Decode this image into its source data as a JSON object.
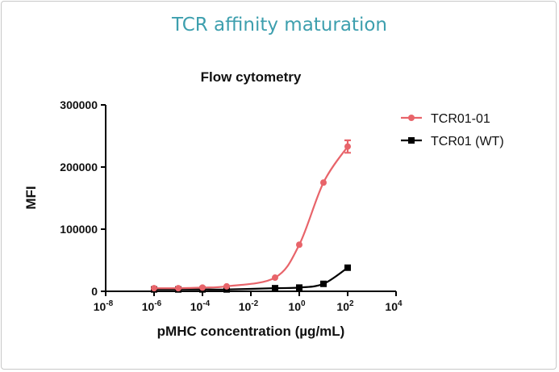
{
  "page_title": "TCR affinity maturation",
  "chart_data": {
    "type": "line",
    "title": "Flow cytometry",
    "xlabel": "pMHC concentration (µg/mL)",
    "ylabel": "MFI",
    "xscale": "log10",
    "xlim_exp": [
      -8,
      4
    ],
    "x_tick_exponents": [
      -8,
      -6,
      -4,
      -2,
      0,
      2,
      4
    ],
    "ylim": [
      0,
      300000
    ],
    "y_ticks": [
      0,
      100000,
      200000,
      300000
    ],
    "y_tick_labels": [
      "0",
      "100000",
      "200000",
      "300000"
    ],
    "legend_position": "top-right",
    "series": [
      {
        "name": "TCR01-01",
        "color": "#e8646a",
        "marker": "circle",
        "x_exp": [
          -6,
          -5,
          -4,
          -3,
          -1,
          0,
          1,
          2
        ],
        "values": [
          5000,
          5000,
          6000,
          8000,
          22000,
          75000,
          175000,
          233000
        ],
        "errors": [
          0,
          0,
          0,
          0,
          0,
          0,
          0,
          10000
        ]
      },
      {
        "name": "TCR01 (WT)",
        "color": "#000000",
        "marker": "square",
        "x_exp": [
          -6,
          -5,
          -4,
          -3,
          -1,
          0,
          1,
          2
        ],
        "values": [
          3000,
          3000,
          3000,
          3000,
          5000,
          6000,
          12000,
          38000
        ],
        "errors": [
          0,
          0,
          0,
          0,
          0,
          0,
          0,
          0
        ]
      }
    ]
  }
}
